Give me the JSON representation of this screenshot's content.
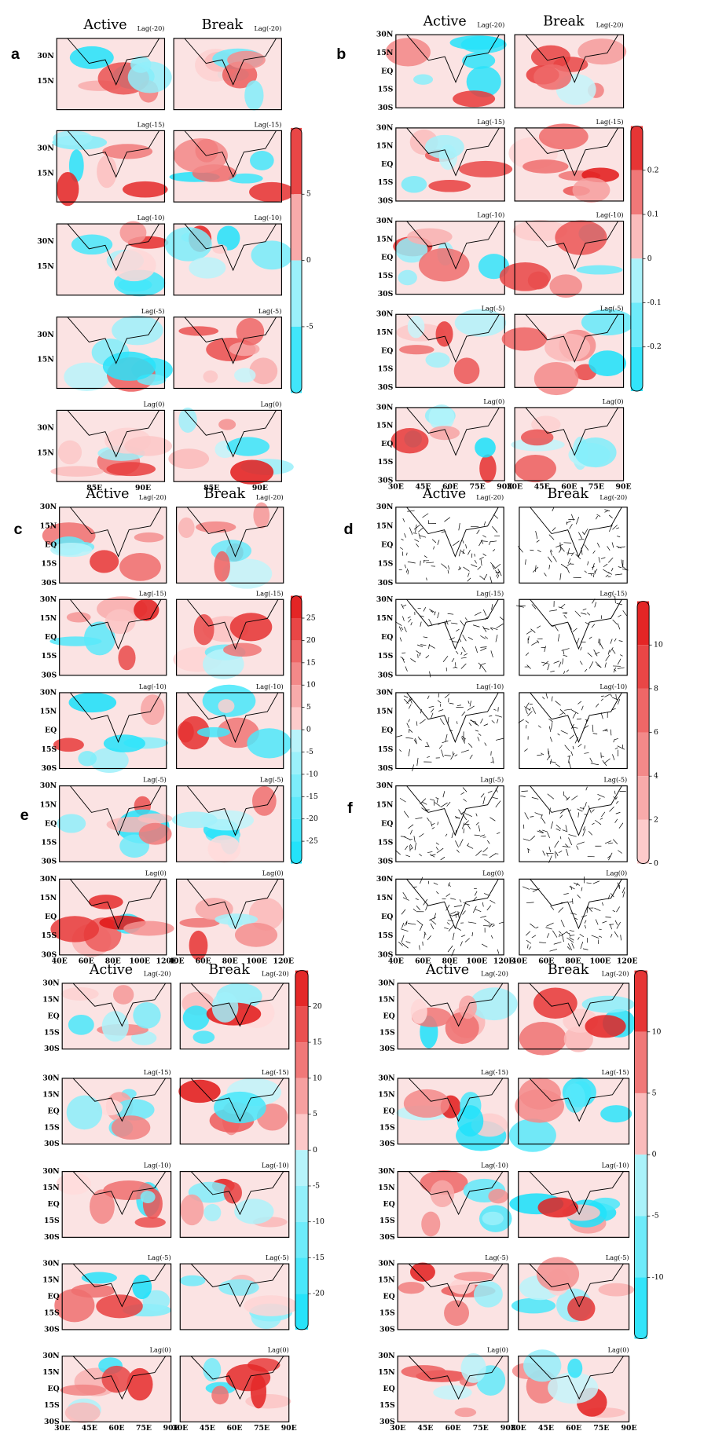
{
  "panels": [
    {
      "label": "a",
      "titles": [
        "Active",
        "Break"
      ],
      "lags": [
        "Lag(-20)",
        "Lag(-15)",
        "Lag(-10)",
        "Lag(-5)",
        "Lag(0)"
      ],
      "yticks": [
        "30N",
        "15N"
      ],
      "xticks": [
        "85E",
        "90E"
      ],
      "colorbar": {
        "lim": [
          -10,
          10
        ],
        "ticks": [
          5,
          0,
          -5
        ]
      }
    },
    {
      "label": "b",
      "titles": [
        "Active",
        "Break"
      ],
      "lags": [
        "Lag(-20)",
        "Lag(-15)",
        "Lag(-10)",
        "Lag(-5)",
        "Lag(0)"
      ],
      "yticks": [
        "30N",
        "15N",
        "EQ",
        "15S",
        "30S"
      ],
      "xticks": [
        "30E",
        "45E",
        "60E",
        "75E",
        "90E"
      ],
      "colorbar": {
        "lim": [
          -0.3,
          0.3
        ],
        "ticks": [
          0.2,
          0.1,
          0,
          -0.1,
          -0.2
        ]
      }
    },
    {
      "label": "c",
      "titles": [
        "Active",
        "Break"
      ],
      "lags": [
        "Lag(-20)",
        "Lag(-15)",
        "Lag(-10)",
        "Lag(-5)",
        "Lag(0)"
      ],
      "yticks": [
        "30N",
        "15N",
        "EQ",
        "15S",
        "30S"
      ],
      "xticks": [
        "40E",
        "60E",
        "80E",
        "100E",
        "120E"
      ],
      "colorbar": {
        "lim": [
          -30,
          30
        ],
        "ticks": [
          25,
          20,
          15,
          10,
          5,
          0,
          -5,
          -10,
          -15,
          -20,
          -25
        ]
      }
    },
    {
      "label": "d",
      "titles": [
        "Active",
        "Break"
      ],
      "lags": [
        "Lag(-20)",
        "Lag(-15)",
        "Lag(-10)",
        "Lag(-5)",
        "Lag(0)"
      ],
      "yticks": [
        "30N",
        "15N",
        "EQ",
        "15S",
        "30S"
      ],
      "xticks": [
        "40E",
        "60E",
        "80E",
        "100E",
        "120E"
      ],
      "colorbar": {
        "lim": [
          0,
          12
        ],
        "ticks": [
          10,
          8,
          6,
          4,
          2,
          0
        ]
      }
    },
    {
      "label": "e",
      "titles": [
        "Active",
        "Break"
      ],
      "lags": [
        "Lag(-20)",
        "Lag(-15)",
        "Lag(-10)",
        "Lag(-5)",
        "Lag(0)"
      ],
      "yticks": [
        "30N",
        "15N",
        "EQ",
        "15S",
        "30S"
      ],
      "xticks": [
        "30E",
        "45E",
        "60E",
        "75E",
        "90E"
      ],
      "colorbar": {
        "lim": [
          -25,
          25
        ],
        "ticks": [
          20,
          15,
          10,
          5,
          0,
          -5,
          -10,
          -15,
          -20
        ]
      }
    },
    {
      "label": "f",
      "titles": [
        "Active",
        "Break"
      ],
      "lags": [
        "Lag(-20)",
        "Lag(-15)",
        "Lag(-10)",
        "Lag(-5)",
        "Lag(0)"
      ],
      "yticks": [
        "30N",
        "15N",
        "EQ",
        "15S",
        "30S"
      ],
      "xticks": [
        "30E",
        "45E",
        "60E",
        "75E",
        "90E"
      ],
      "colorbar": {
        "lim": [
          -15,
          15
        ],
        "ticks": [
          10,
          5,
          0,
          -5,
          -10
        ]
      }
    }
  ]
}
